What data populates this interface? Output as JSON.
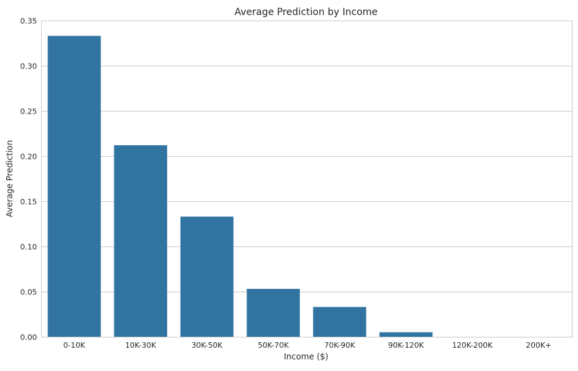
{
  "chart_data": {
    "type": "bar",
    "title": "Average Prediction by Income",
    "xlabel": "Income ($)",
    "ylabel": "Average Prediction",
    "categories": [
      "0-10K",
      "10K-30K",
      "30K-50K",
      "50K-70K",
      "70K-90K",
      "90K-120K",
      "120K-200K",
      "200K+"
    ],
    "values": [
      0.333,
      0.212,
      0.133,
      0.053,
      0.033,
      0.005,
      0.0,
      0.0
    ],
    "ylim": [
      0,
      0.35
    ],
    "yticks": [
      "0.00",
      "0.05",
      "0.10",
      "0.15",
      "0.20",
      "0.25",
      "0.30",
      "0.35"
    ],
    "grid": true,
    "bar_color": "#3274a1"
  }
}
